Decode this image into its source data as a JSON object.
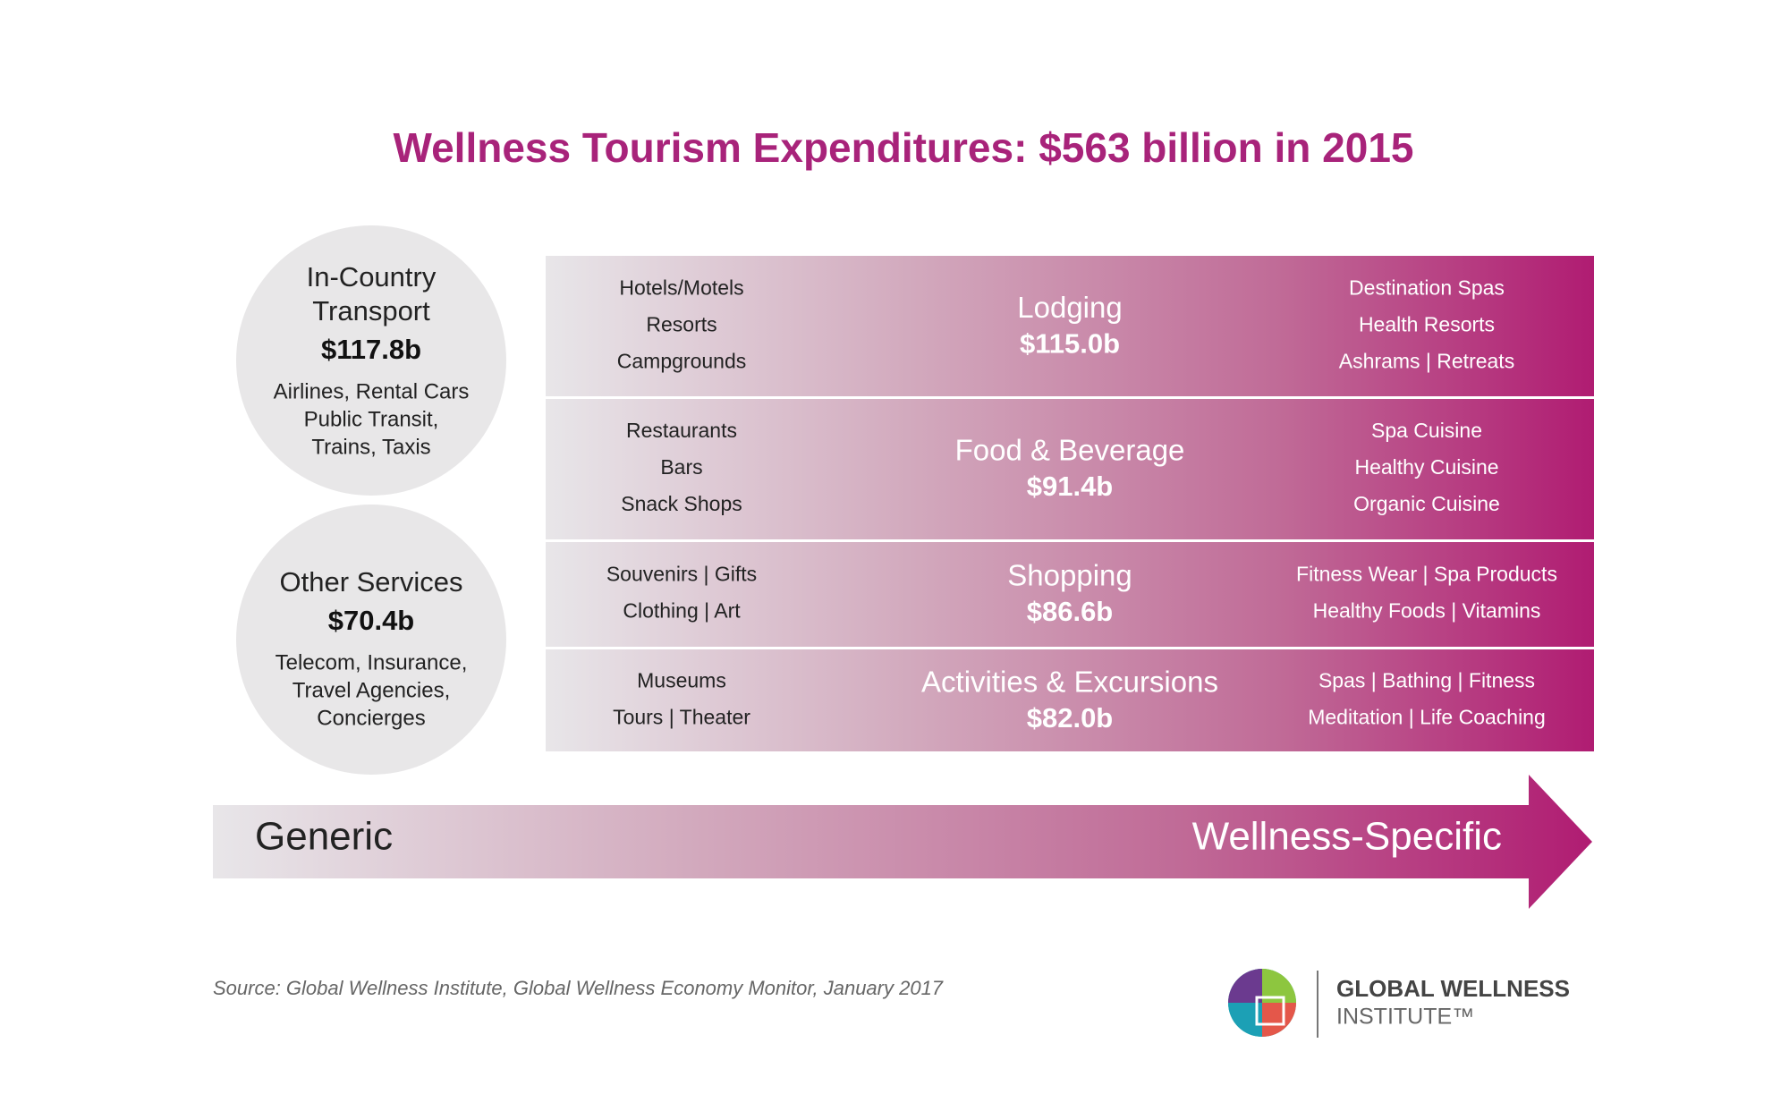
{
  "title": "Wellness Tourism Expenditures: $563 billion in 2015",
  "circles": [
    {
      "lines": [
        "In-Country",
        "Transport"
      ],
      "value": "$117.8b",
      "items": [
        "Airlines, Rental Cars",
        "Public Transit,",
        "Trains, Taxis"
      ]
    },
    {
      "lines": [
        "Other Services"
      ],
      "value": "$70.4b",
      "items": [
        "Telecom, Insurance,",
        "Travel Agencies,",
        "Concierges"
      ]
    }
  ],
  "rows": [
    {
      "left": [
        "Hotels/Motels",
        "Resorts",
        "Campgrounds"
      ],
      "name": "Lodging",
      "value": "$115.0b",
      "right": [
        "Destination Spas",
        "Health Resorts",
        "Ashrams | Retreats"
      ]
    },
    {
      "left": [
        "Restaurants",
        "Bars",
        "Snack Shops"
      ],
      "name": "Food & Beverage",
      "value": "$91.4b",
      "right": [
        "Spa Cuisine",
        "Healthy Cuisine",
        "Organic Cuisine"
      ]
    },
    {
      "left": [
        "Souvenirs | Gifts",
        "Clothing | Art"
      ],
      "name": "Shopping",
      "value": "$86.6b",
      "right": [
        "Fitness Wear | Spa Products",
        "Healthy Foods | Vitamins"
      ]
    },
    {
      "left": [
        "Museums",
        "Tours | Theater"
      ],
      "name": "Activities & Excursions",
      "value": "$82.0b",
      "right": [
        "Spas | Bathing | Fitness",
        "Meditation | Life Coaching"
      ]
    }
  ],
  "arrow": {
    "start": "Generic",
    "end": "Wellness-Specific"
  },
  "source": "Source: Global Wellness Institute, Global Wellness Economy Monitor, January 2017",
  "logo": {
    "line1": "GLOBAL WELLNESS",
    "line2": "INSTITUTE™"
  }
}
